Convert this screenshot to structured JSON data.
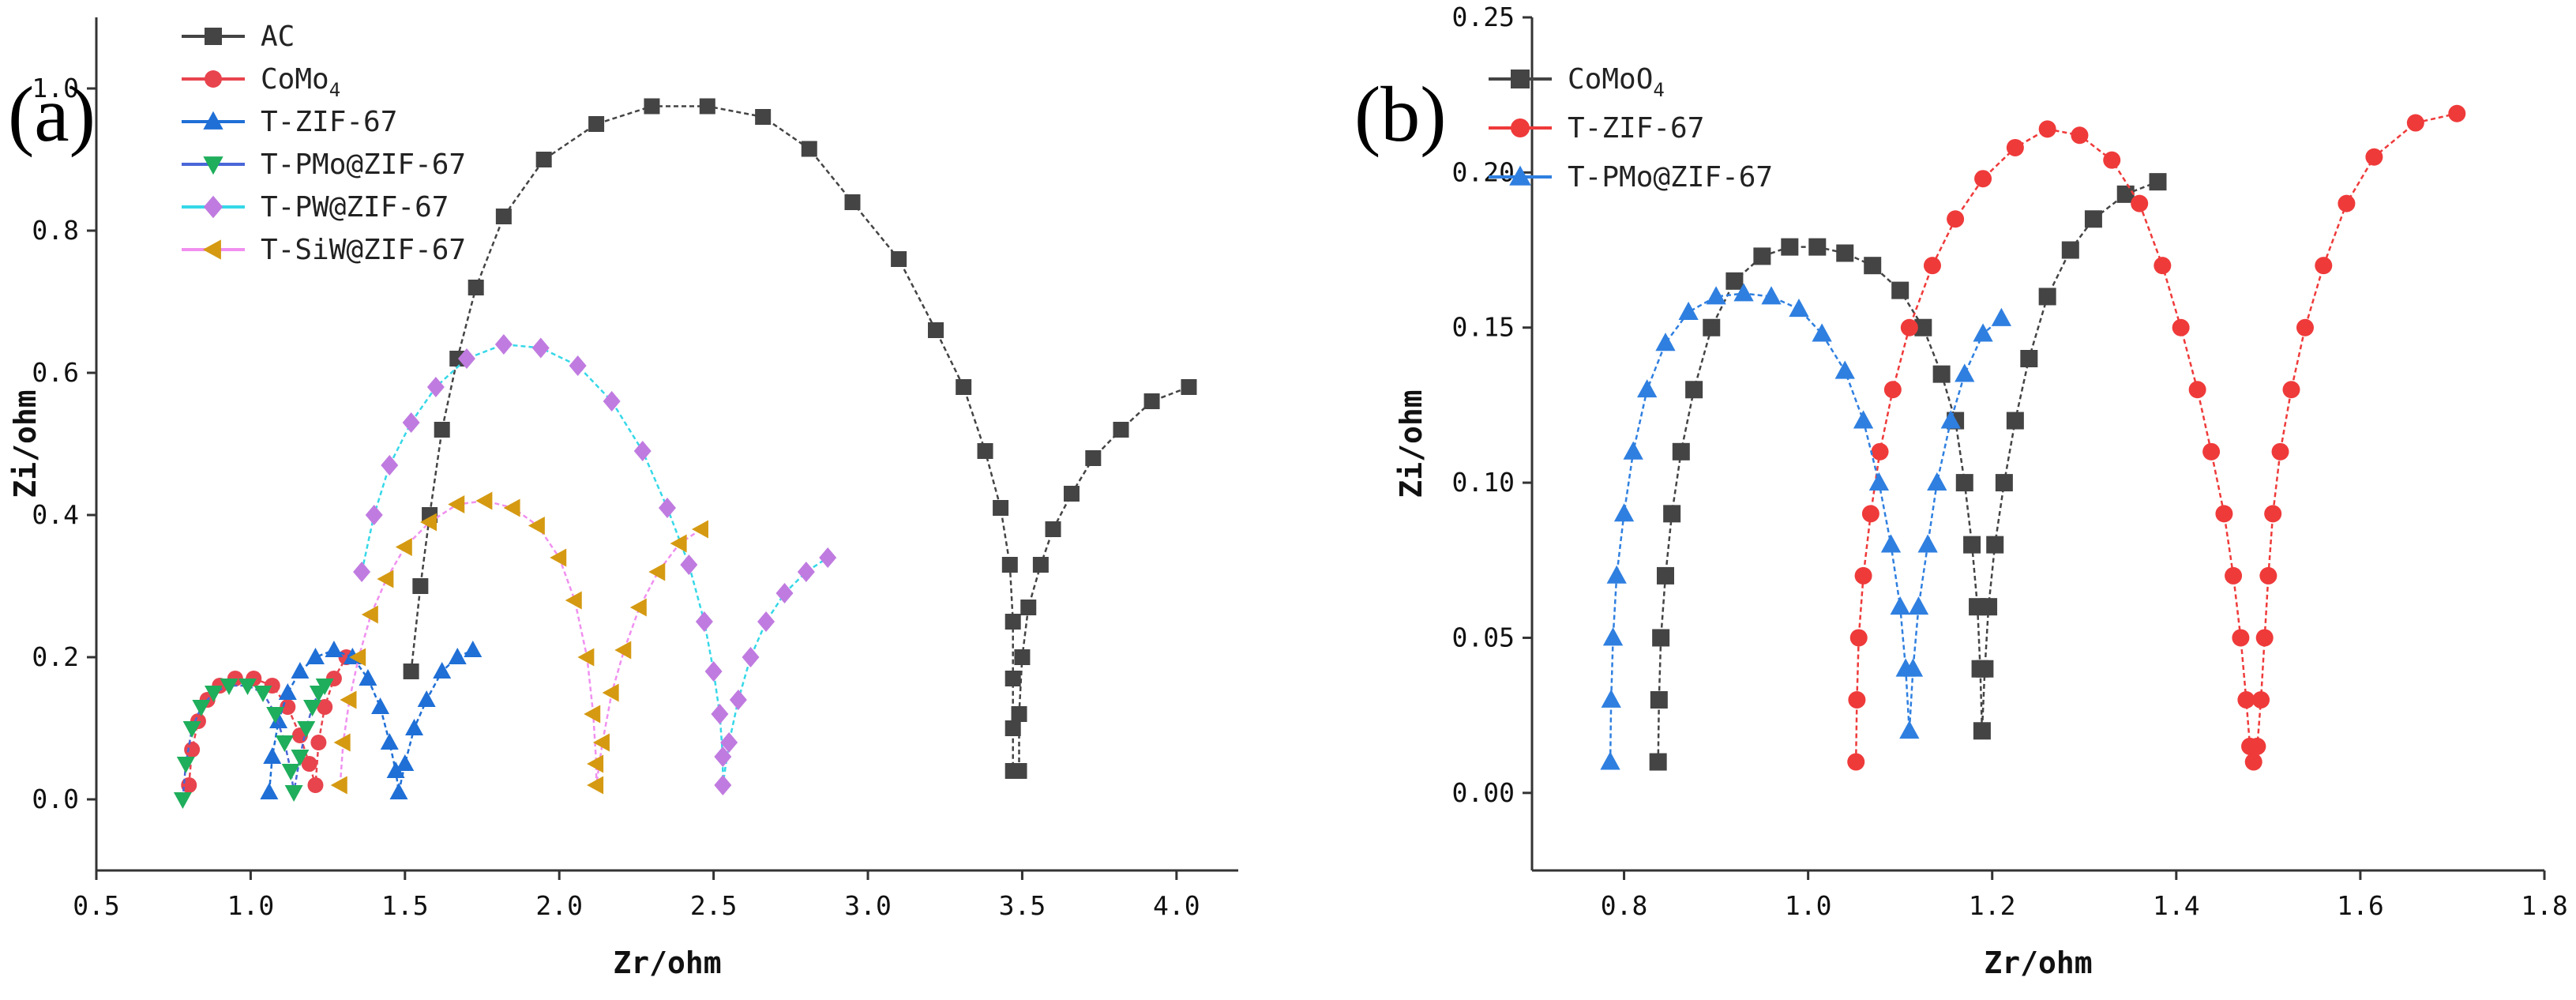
{
  "chart_data": [
    {
      "type": "scatter",
      "panel_label": "(a)",
      "xlabel": "Zr/ohm",
      "ylabel": "Zi/ohm",
      "xlim": [
        0.5,
        4.2
      ],
      "ylim": [
        -0.1,
        1.1
      ],
      "xticks": [
        "0.5",
        "1.0",
        "1.5",
        "2.0",
        "2.5",
        "3.0",
        "3.5",
        "4.0"
      ],
      "yticks": [
        "0.0",
        "0.2",
        "0.4",
        "0.6",
        "0.8",
        "1.0"
      ],
      "legend_position": "top-left",
      "series": [
        {
          "name": "AC",
          "name_sub": "",
          "color": "#444444",
          "line_color": "#444444",
          "marker": "square",
          "points": [
            [
              1.52,
              0.18
            ],
            [
              1.55,
              0.3
            ],
            [
              1.58,
              0.4
            ],
            [
              1.62,
              0.52
            ],
            [
              1.67,
              0.62
            ],
            [
              1.73,
              0.72
            ],
            [
              1.82,
              0.82
            ],
            [
              1.95,
              0.9
            ],
            [
              2.12,
              0.95
            ],
            [
              2.3,
              0.975
            ],
            [
              2.48,
              0.975
            ],
            [
              2.66,
              0.96
            ],
            [
              2.81,
              0.915
            ],
            [
              2.95,
              0.84
            ],
            [
              3.1,
              0.76
            ],
            [
              3.22,
              0.66
            ],
            [
              3.31,
              0.58
            ],
            [
              3.38,
              0.49
            ],
            [
              3.43,
              0.41
            ],
            [
              3.46,
              0.33
            ],
            [
              3.47,
              0.25
            ],
            [
              3.47,
              0.17
            ],
            [
              3.47,
              0.1
            ],
            [
              3.47,
              0.04
            ],
            [
              3.49,
              0.04
            ],
            [
              3.49,
              0.12
            ],
            [
              3.5,
              0.2
            ],
            [
              3.52,
              0.27
            ],
            [
              3.56,
              0.33
            ],
            [
              3.6,
              0.38
            ],
            [
              3.66,
              0.43
            ],
            [
              3.73,
              0.48
            ],
            [
              3.82,
              0.52
            ],
            [
              3.92,
              0.56
            ],
            [
              4.04,
              0.58
            ]
          ]
        },
        {
          "name": "CoMo",
          "name_sub": "4",
          "color": "#e8444e",
          "line_color": "#e8444e",
          "marker": "circle",
          "points": [
            [
              0.8,
              0.02
            ],
            [
              0.81,
              0.07
            ],
            [
              0.83,
              0.11
            ],
            [
              0.86,
              0.14
            ],
            [
              0.9,
              0.16
            ],
            [
              0.95,
              0.17
            ],
            [
              1.01,
              0.17
            ],
            [
              1.07,
              0.16
            ],
            [
              1.12,
              0.13
            ],
            [
              1.16,
              0.09
            ],
            [
              1.19,
              0.05
            ],
            [
              1.21,
              0.02
            ],
            [
              1.22,
              0.08
            ],
            [
              1.24,
              0.13
            ],
            [
              1.27,
              0.17
            ],
            [
              1.31,
              0.2
            ]
          ]
        },
        {
          "name": "T-ZIF-67",
          "name_sub": "",
          "color": "#1f6fd6",
          "line_color": "#1f6fd6",
          "marker": "triangle-up",
          "points": [
            [
              1.06,
              0.01
            ],
            [
              1.07,
              0.06
            ],
            [
              1.09,
              0.11
            ],
            [
              1.12,
              0.15
            ],
            [
              1.16,
              0.18
            ],
            [
              1.21,
              0.2
            ],
            [
              1.27,
              0.21
            ],
            [
              1.33,
              0.2
            ],
            [
              1.38,
              0.17
            ],
            [
              1.42,
              0.13
            ],
            [
              1.45,
              0.08
            ],
            [
              1.47,
              0.04
            ],
            [
              1.48,
              0.01
            ],
            [
              1.5,
              0.05
            ],
            [
              1.53,
              0.1
            ],
            [
              1.57,
              0.14
            ],
            [
              1.62,
              0.18
            ],
            [
              1.67,
              0.2
            ],
            [
              1.72,
              0.21
            ]
          ]
        },
        {
          "name": "T-PMo@ZIF-67",
          "name_sub": "",
          "color": "#1fae5c",
          "line_color": "#4a66d8",
          "marker": "triangle-down",
          "points": [
            [
              0.78,
              0.0
            ],
            [
              0.79,
              0.05
            ],
            [
              0.81,
              0.1
            ],
            [
              0.84,
              0.13
            ],
            [
              0.88,
              0.15
            ],
            [
              0.93,
              0.16
            ],
            [
              0.99,
              0.16
            ],
            [
              1.04,
              0.15
            ],
            [
              1.08,
              0.12
            ],
            [
              1.11,
              0.08
            ],
            [
              1.13,
              0.04
            ],
            [
              1.14,
              0.01
            ],
            [
              1.16,
              0.06
            ],
            [
              1.18,
              0.1
            ],
            [
              1.2,
              0.13
            ],
            [
              1.22,
              0.15
            ],
            [
              1.24,
              0.16
            ]
          ]
        },
        {
          "name": "T-PW@ZIF-67",
          "name_sub": "",
          "color": "#c07be0",
          "line_color": "#36d8e8",
          "marker": "diamond",
          "points": [
            [
              1.36,
              0.32
            ],
            [
              1.4,
              0.4
            ],
            [
              1.45,
              0.47
            ],
            [
              1.52,
              0.53
            ],
            [
              1.6,
              0.58
            ],
            [
              1.7,
              0.62
            ],
            [
              1.82,
              0.64
            ],
            [
              1.94,
              0.635
            ],
            [
              2.06,
              0.61
            ],
            [
              2.17,
              0.56
            ],
            [
              2.27,
              0.49
            ],
            [
              2.35,
              0.41
            ],
            [
              2.42,
              0.33
            ],
            [
              2.47,
              0.25
            ],
            [
              2.5,
              0.18
            ],
            [
              2.52,
              0.12
            ],
            [
              2.53,
              0.06
            ],
            [
              2.53,
              0.02
            ],
            [
              2.55,
              0.08
            ],
            [
              2.58,
              0.14
            ],
            [
              2.62,
              0.2
            ],
            [
              2.67,
              0.25
            ],
            [
              2.73,
              0.29
            ],
            [
              2.8,
              0.32
            ],
            [
              2.87,
              0.34
            ]
          ]
        },
        {
          "name": "T-SiW@ZIF-67",
          "name_sub": "",
          "color": "#d59a12",
          "line_color": "#f090f0",
          "marker": "triangle-left",
          "points": [
            [
              1.29,
              0.02
            ],
            [
              1.3,
              0.08
            ],
            [
              1.32,
              0.14
            ],
            [
              1.35,
              0.2
            ],
            [
              1.39,
              0.26
            ],
            [
              1.44,
              0.31
            ],
            [
              1.5,
              0.355
            ],
            [
              1.58,
              0.39
            ],
            [
              1.67,
              0.415
            ],
            [
              1.76,
              0.42
            ],
            [
              1.85,
              0.41
            ],
            [
              1.93,
              0.385
            ],
            [
              2.0,
              0.34
            ],
            [
              2.05,
              0.28
            ],
            [
              2.09,
              0.2
            ],
            [
              2.11,
              0.12
            ],
            [
              2.12,
              0.05
            ],
            [
              2.12,
              0.02
            ],
            [
              2.14,
              0.08
            ],
            [
              2.17,
              0.15
            ],
            [
              2.21,
              0.21
            ],
            [
              2.26,
              0.27
            ],
            [
              2.32,
              0.32
            ],
            [
              2.39,
              0.36
            ],
            [
              2.46,
              0.38
            ]
          ]
        }
      ]
    },
    {
      "type": "scatter",
      "panel_label": "(b)",
      "xlabel": "Zr/ohm",
      "ylabel": "Zi/ohm",
      "xlim": [
        0.7,
        1.8
      ],
      "ylim": [
        -0.025,
        0.25
      ],
      "xticks": [
        "0.8",
        "1.0",
        "1.2",
        "1.4",
        "1.6",
        "1.8"
      ],
      "yticks": [
        "0.00",
        "0.05",
        "0.10",
        "0.15",
        "0.20",
        "0.25"
      ],
      "legend_position": "top-left",
      "series": [
        {
          "name": "CoMoO",
          "name_sub": "4",
          "color": "#444444",
          "line_color": "#444444",
          "marker": "square",
          "points": [
            [
              0.837,
              0.01
            ],
            [
              0.838,
              0.03
            ],
            [
              0.84,
              0.05
            ],
            [
              0.845,
              0.07
            ],
            [
              0.852,
              0.09
            ],
            [
              0.862,
              0.11
            ],
            [
              0.876,
              0.13
            ],
            [
              0.895,
              0.15
            ],
            [
              0.92,
              0.165
            ],
            [
              0.95,
              0.173
            ],
            [
              0.98,
              0.176
            ],
            [
              1.01,
              0.176
            ],
            [
              1.04,
              0.174
            ],
            [
              1.07,
              0.17
            ],
            [
              1.1,
              0.162
            ],
            [
              1.125,
              0.15
            ],
            [
              1.145,
              0.135
            ],
            [
              1.16,
              0.12
            ],
            [
              1.17,
              0.1
            ],
            [
              1.178,
              0.08
            ],
            [
              1.184,
              0.06
            ],
            [
              1.187,
              0.04
            ],
            [
              1.189,
              0.02
            ],
            [
              1.192,
              0.04
            ],
            [
              1.196,
              0.06
            ],
            [
              1.203,
              0.08
            ],
            [
              1.213,
              0.1
            ],
            [
              1.225,
              0.12
            ],
            [
              1.24,
              0.14
            ],
            [
              1.26,
              0.16
            ],
            [
              1.285,
              0.175
            ],
            [
              1.31,
              0.185
            ],
            [
              1.345,
              0.193
            ],
            [
              1.38,
              0.197
            ]
          ]
        },
        {
          "name": "T-ZIF-67",
          "name_sub": "",
          "color": "#ef3a3a",
          "line_color": "#ef3a3a",
          "marker": "circle",
          "points": [
            [
              1.052,
              0.01
            ],
            [
              1.053,
              0.03
            ],
            [
              1.055,
              0.05
            ],
            [
              1.06,
              0.07
            ],
            [
              1.068,
              0.09
            ],
            [
              1.078,
              0.11
            ],
            [
              1.092,
              0.13
            ],
            [
              1.11,
              0.15
            ],
            [
              1.135,
              0.17
            ],
            [
              1.16,
              0.185
            ],
            [
              1.19,
              0.198
            ],
            [
              1.225,
              0.208
            ],
            [
              1.26,
              0.214
            ],
            [
              1.295,
              0.212
            ],
            [
              1.33,
              0.204
            ],
            [
              1.36,
              0.19
            ],
            [
              1.385,
              0.17
            ],
            [
              1.405,
              0.15
            ],
            [
              1.423,
              0.13
            ],
            [
              1.438,
              0.11
            ],
            [
              1.452,
              0.09
            ],
            [
              1.462,
              0.07
            ],
            [
              1.47,
              0.05
            ],
            [
              1.476,
              0.03
            ],
            [
              1.48,
              0.015
            ],
            [
              1.484,
              0.01
            ],
            [
              1.488,
              0.015
            ],
            [
              1.492,
              0.03
            ],
            [
              1.496,
              0.05
            ],
            [
              1.5,
              0.07
            ],
            [
              1.505,
              0.09
            ],
            [
              1.513,
              0.11
            ],
            [
              1.525,
              0.13
            ],
            [
              1.54,
              0.15
            ],
            [
              1.56,
              0.17
            ],
            [
              1.585,
              0.19
            ],
            [
              1.615,
              0.205
            ],
            [
              1.66,
              0.216
            ],
            [
              1.705,
              0.219
            ]
          ]
        },
        {
          "name": "T-PMo@ZIF-67",
          "name_sub": "",
          "color": "#2f7fe0",
          "line_color": "#2f7fe0",
          "marker": "triangle-up",
          "points": [
            [
              0.785,
              0.01
            ],
            [
              0.786,
              0.03
            ],
            [
              0.788,
              0.05
            ],
            [
              0.792,
              0.07
            ],
            [
              0.8,
              0.09
            ],
            [
              0.81,
              0.11
            ],
            [
              0.825,
              0.13
            ],
            [
              0.845,
              0.145
            ],
            [
              0.87,
              0.155
            ],
            [
              0.9,
              0.16
            ],
            [
              0.93,
              0.161
            ],
            [
              0.96,
              0.16
            ],
            [
              0.99,
              0.156
            ],
            [
              1.015,
              0.148
            ],
            [
              1.04,
              0.136
            ],
            [
              1.06,
              0.12
            ],
            [
              1.077,
              0.1
            ],
            [
              1.09,
              0.08
            ],
            [
              1.1,
              0.06
            ],
            [
              1.106,
              0.04
            ],
            [
              1.11,
              0.02
            ],
            [
              1.114,
              0.04
            ],
            [
              1.12,
              0.06
            ],
            [
              1.13,
              0.08
            ],
            [
              1.14,
              0.1
            ],
            [
              1.155,
              0.12
            ],
            [
              1.17,
              0.135
            ],
            [
              1.19,
              0.148
            ],
            [
              1.21,
              0.153
            ]
          ]
        }
      ]
    }
  ]
}
